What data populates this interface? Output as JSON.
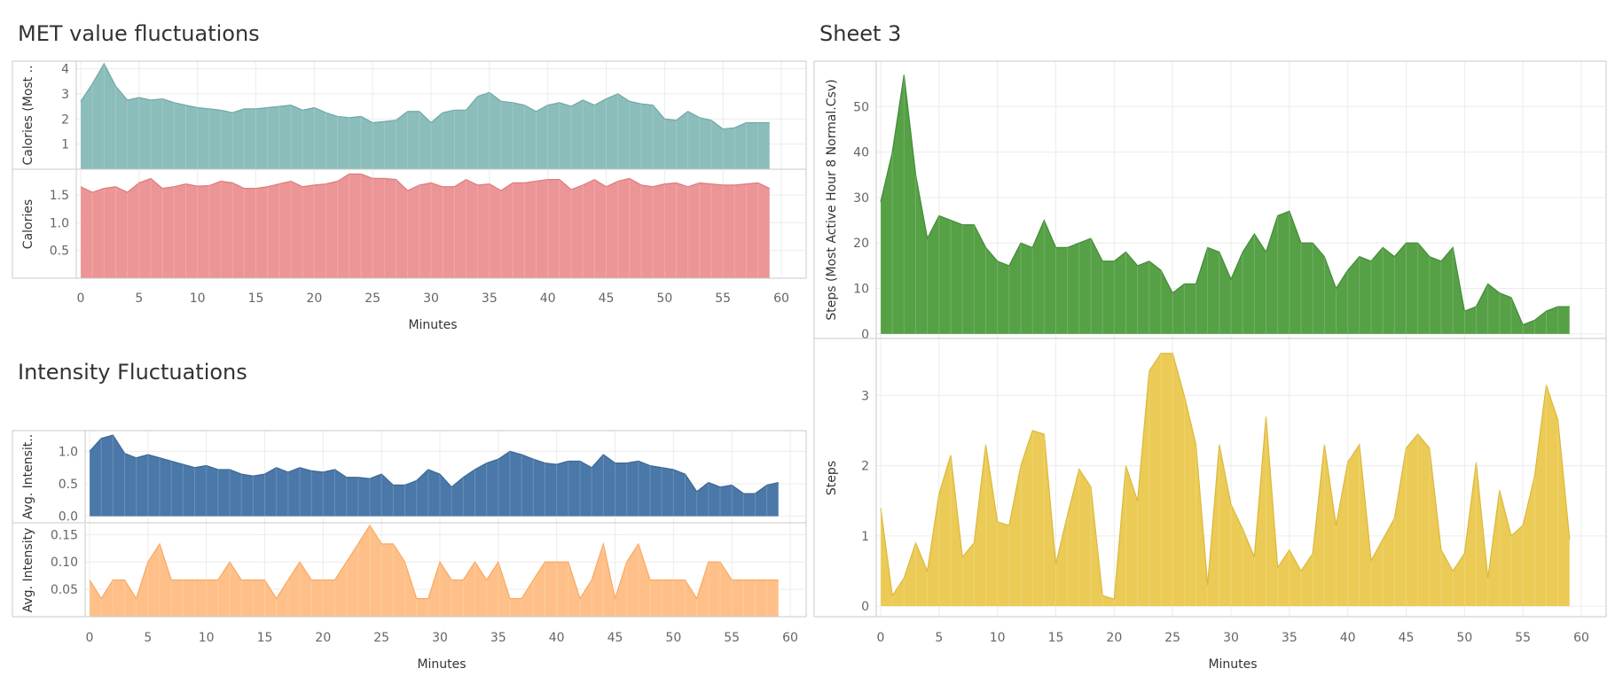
{
  "titles": {
    "met": "MET value fluctuations",
    "intensity": "Intensity Fluctuations",
    "sheet3": "Sheet 3"
  },
  "chart_data": [
    {
      "type": "area",
      "title": "MET value fluctuations",
      "xlabel": "Minutes",
      "xlim": [
        0,
        60
      ],
      "x_ticks": [
        0,
        5,
        10,
        15,
        20,
        25,
        30,
        35,
        40,
        45,
        50,
        55,
        60
      ],
      "panes": [
        {
          "ylabel": "Calories (Most ..",
          "ylim": [
            0,
            4.3
          ],
          "y_ticks": [
            1,
            2,
            3,
            4
          ],
          "color": "#8bbdbb",
          "stroke": "#6fa9a6",
          "values": [
            2.7,
            3.4,
            4.2,
            3.3,
            2.75,
            2.85,
            2.75,
            2.8,
            2.65,
            2.55,
            2.45,
            2.4,
            2.35,
            2.25,
            2.4,
            2.4,
            2.45,
            2.5,
            2.55,
            2.35,
            2.45,
            2.25,
            2.1,
            2.05,
            2.1,
            1.85,
            1.9,
            1.95,
            2.3,
            2.3,
            1.85,
            2.25,
            2.35,
            2.35,
            2.9,
            3.05,
            2.7,
            2.65,
            2.55,
            2.3,
            2.55,
            2.65,
            2.5,
            2.75,
            2.55,
            2.8,
            3.0,
            2.7,
            2.6,
            2.55,
            2.0,
            1.95,
            2.3,
            2.05,
            1.95,
            1.6,
            1.65,
            1.85,
            1.85,
            1.85
          ]
        },
        {
          "ylabel": "Calories",
          "ylim": [
            0,
            1.95
          ],
          "y_ticks": [
            0.5,
            1.0,
            1.5
          ],
          "y_tick_labels": [
            "0.5",
            "1.0",
            "1.5"
          ],
          "color": "#ec9596",
          "stroke": "#e07a7c",
          "values": [
            1.65,
            1.55,
            1.62,
            1.65,
            1.55,
            1.72,
            1.8,
            1.62,
            1.65,
            1.7,
            1.66,
            1.67,
            1.75,
            1.72,
            1.62,
            1.62,
            1.65,
            1.7,
            1.75,
            1.65,
            1.68,
            1.7,
            1.75,
            1.88,
            1.88,
            1.8,
            1.8,
            1.78,
            1.58,
            1.68,
            1.72,
            1.65,
            1.65,
            1.78,
            1.68,
            1.7,
            1.58,
            1.72,
            1.72,
            1.75,
            1.78,
            1.78,
            1.6,
            1.68,
            1.78,
            1.65,
            1.75,
            1.8,
            1.68,
            1.65,
            1.7,
            1.72,
            1.65,
            1.72,
            1.7,
            1.68,
            1.68,
            1.7,
            1.72,
            1.62
          ]
        }
      ]
    },
    {
      "type": "area",
      "title": "Intensity Fluctuations",
      "xlabel": "Minutes",
      "xlim": [
        0,
        60
      ],
      "x_ticks": [
        0,
        5,
        10,
        15,
        20,
        25,
        30,
        35,
        40,
        45,
        50,
        55,
        60
      ],
      "panes": [
        {
          "ylabel": "Avg. Intensit..",
          "ylim": [
            -0.1,
            1.32
          ],
          "y_ticks": [
            0.0,
            0.5,
            1.0
          ],
          "y_tick_labels": [
            "0.0",
            "0.5",
            "1.0"
          ],
          "color": "#4a78a8",
          "stroke": "#3d6794",
          "values": [
            1.0,
            1.2,
            1.25,
            0.97,
            0.9,
            0.95,
            0.9,
            0.85,
            0.8,
            0.75,
            0.78,
            0.72,
            0.72,
            0.65,
            0.62,
            0.65,
            0.75,
            0.68,
            0.75,
            0.7,
            0.68,
            0.72,
            0.6,
            0.6,
            0.58,
            0.65,
            0.48,
            0.48,
            0.55,
            0.72,
            0.65,
            0.45,
            0.6,
            0.72,
            0.82,
            0.88,
            1.0,
            0.95,
            0.88,
            0.82,
            0.8,
            0.85,
            0.85,
            0.75,
            0.95,
            0.82,
            0.82,
            0.85,
            0.78,
            0.75,
            0.72,
            0.65,
            0.38,
            0.52,
            0.45,
            0.48,
            0.35,
            0.35,
            0.48,
            0.52
          ]
        },
        {
          "ylabel": "Avg. Intensity",
          "ylim": [
            0,
            0.17
          ],
          "y_ticks": [
            0.05,
            0.1,
            0.15
          ],
          "y_tick_labels": [
            "0.05",
            "0.10",
            "0.15"
          ],
          "color": "#fec088",
          "stroke": "#f9a860",
          "values": [
            0.067,
            0.033,
            0.067,
            0.067,
            0.033,
            0.1,
            0.133,
            0.067,
            0.067,
            0.067,
            0.067,
            0.067,
            0.1,
            0.067,
            0.067,
            0.067,
            0.033,
            0.067,
            0.1,
            0.067,
            0.067,
            0.067,
            0.1,
            0.133,
            0.167,
            0.133,
            0.133,
            0.1,
            0.033,
            0.033,
            0.1,
            0.067,
            0.067,
            0.1,
            0.067,
            0.1,
            0.033,
            0.033,
            0.067,
            0.1,
            0.1,
            0.1,
            0.033,
            0.067,
            0.133,
            0.033,
            0.1,
            0.133,
            0.067,
            0.067,
            0.067,
            0.067,
            0.033,
            0.1,
            0.1,
            0.067,
            0.067,
            0.067,
            0.067,
            0.067
          ]
        }
      ]
    },
    {
      "type": "area",
      "title": "Sheet 3",
      "xlabel": "Minutes",
      "xlim": [
        0,
        60
      ],
      "x_ticks": [
        0,
        5,
        10,
        15,
        20,
        25,
        30,
        35,
        40,
        45,
        50,
        55,
        60
      ],
      "panes": [
        {
          "ylabel": "Steps (Most Active Hour 8 Normal.Csv)",
          "ylim": [
            -1,
            60
          ],
          "y_ticks": [
            0,
            10,
            20,
            30,
            40,
            50
          ],
          "color": "#56a046",
          "stroke": "#438c36",
          "values": [
            29,
            40,
            57,
            35,
            21,
            26,
            25,
            24,
            24,
            19,
            16,
            15,
            20,
            19,
            25,
            19,
            19,
            20,
            21,
            16,
            16,
            18,
            15,
            16,
            14,
            9,
            11,
            11,
            19,
            18,
            12,
            18,
            22,
            18,
            26,
            27,
            20,
            20,
            17,
            10,
            14,
            17,
            16,
            19,
            17,
            20,
            20,
            17,
            16,
            19,
            5,
            6,
            11,
            9,
            8,
            2,
            3,
            5,
            6,
            6
          ]
        },
        {
          "ylabel": "Steps",
          "ylim": [
            -0.15,
            3.8
          ],
          "y_ticks": [
            0,
            1,
            2,
            3
          ],
          "color": "#ebcb55",
          "stroke": "#dcb83a",
          "values": [
            1.4,
            0.15,
            0.4,
            0.9,
            0.5,
            1.6,
            2.15,
            0.7,
            0.9,
            2.3,
            1.2,
            1.15,
            2.0,
            2.5,
            2.45,
            0.6,
            1.3,
            1.95,
            1.7,
            0.15,
            0.1,
            2.0,
            1.5,
            3.35,
            3.6,
            3.6,
            3.0,
            2.3,
            0.3,
            2.3,
            1.45,
            1.1,
            0.7,
            2.7,
            0.55,
            0.8,
            0.5,
            0.75,
            2.3,
            1.15,
            2.05,
            2.3,
            0.65,
            0.95,
            1.25,
            2.25,
            2.45,
            2.25,
            0.8,
            0.5,
            0.75,
            2.05,
            0.4,
            1.65,
            1.0,
            1.15,
            1.85,
            3.15,
            2.65,
            0.95
          ]
        }
      ]
    }
  ]
}
